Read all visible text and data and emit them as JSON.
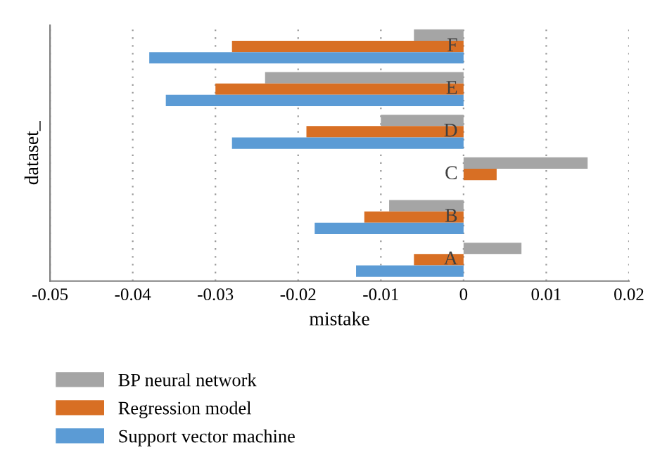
{
  "chart_data": {
    "type": "bar",
    "orientation": "horizontal",
    "xlabel": "mistake",
    "ylabel": "dataset_",
    "categories": [
      "F",
      "E",
      "D",
      "C",
      "B",
      "A"
    ],
    "series": [
      {
        "name": "BP neural network",
        "color": "#a5a5a5",
        "values": [
          -0.006,
          -0.024,
          -0.01,
          0.015,
          -0.009,
          0.007
        ]
      },
      {
        "name": "Regression model",
        "color": "#d86f24",
        "values": [
          -0.028,
          -0.03,
          -0.019,
          0.004,
          -0.012,
          -0.006
        ]
      },
      {
        "name": "Support vector machine",
        "color": "#5b9bd5",
        "values": [
          -0.038,
          -0.036,
          -0.028,
          0,
          -0.018,
          -0.013
        ]
      }
    ],
    "xlim": [
      -0.05,
      0.02
    ],
    "xticks": [
      -0.05,
      -0.04,
      -0.03,
      -0.02,
      -0.01,
      0,
      0.01,
      0.02
    ],
    "grid": "x",
    "legend": "bottom"
  }
}
